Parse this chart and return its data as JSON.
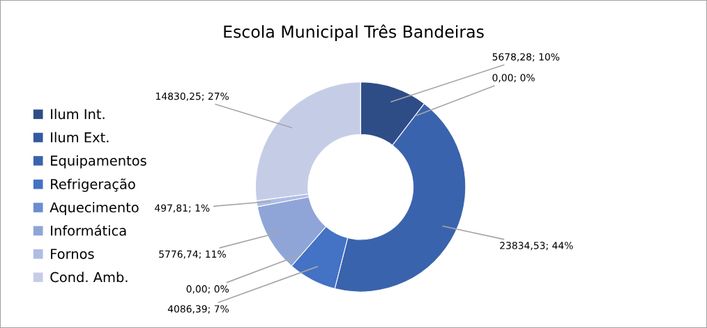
{
  "chart_data": {
    "type": "donut",
    "title": "Escola Municipal Três Bandeiras",
    "categories": [
      "Ilum Int.",
      "Ilum Ext.",
      "Equipamentos",
      "Refrigeração",
      "Aquecimento",
      "Informática",
      "Fornos",
      "Cond. Amb."
    ],
    "values": [
      5678.28,
      0.0,
      23834.53,
      4086.39,
      0.0,
      5776.74,
      497.81,
      14830.25
    ],
    "value_labels": [
      "5678,28; 10%",
      "0,00; 0%",
      "23834,53; 44%",
      "4086,39; 7%",
      "0,00; 0%",
      "5776,74; 11%",
      "497,81; 1%",
      "14830,25; 27%"
    ],
    "colors": [
      "#2e4d87",
      "#3559a0",
      "#3a63ad",
      "#4472c4",
      "#6a8dd0",
      "#8fa5d7",
      "#adbde4",
      "#c5cde6"
    ],
    "legend": "left"
  }
}
